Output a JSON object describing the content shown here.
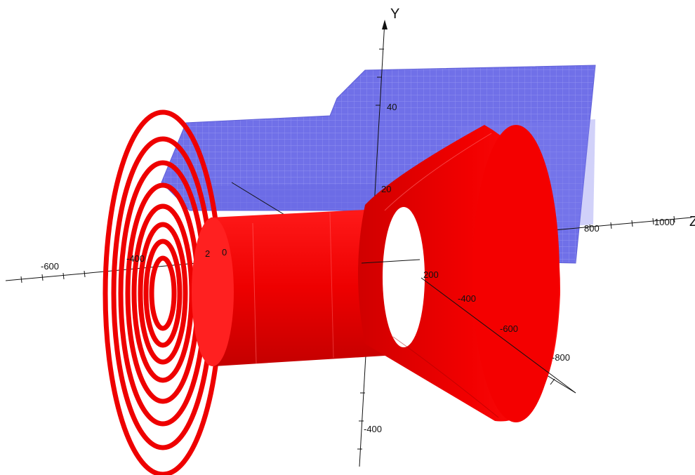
{
  "axes": {
    "y_axis_name": "Y",
    "z_axis_partial_name": "Z",
    "x_tick_labels": [
      "-600",
      "-400",
      "200",
      "800",
      "1000"
    ],
    "partial_tick_labels": [
      "2",
      "0",
      "20"
    ],
    "y_tick_labels": [
      "40",
      "-400"
    ],
    "z_tick_labels": [
      "-400",
      "-600",
      "-800"
    ]
  },
  "colors": {
    "background": "#ffffff",
    "solid_red": "#ee0000",
    "solid_red_shade": "#cc0000",
    "mesh_blue": "#7070e8",
    "mesh_line": "#9a9af2",
    "axis": "#111111"
  },
  "objects": [
    "blue-meshed-wall-icon",
    "red-concentric-rings-icon",
    "red-cylinder-icon",
    "red-cone-icon"
  ]
}
